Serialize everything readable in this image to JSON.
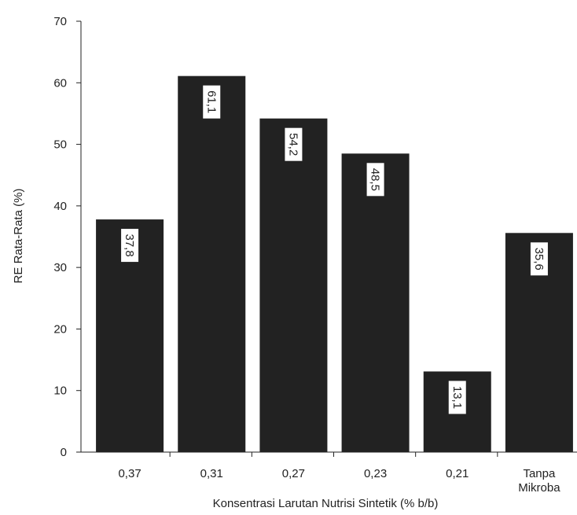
{
  "chart_data": {
    "type": "bar",
    "x_label": "Konsentrasi Larutan Nutrisi Sintetik (% b/b)",
    "y_label": "RE Rata-Rata (%)",
    "categories": [
      "0,37",
      "0,31",
      "0,27",
      "0,23",
      "0,21",
      "Tanpa Mikroba"
    ],
    "values": [
      37.8,
      61.1,
      54.2,
      48.5,
      13.1,
      35.6
    ],
    "value_labels": [
      "37,8",
      "61,1",
      "54,2",
      "48,5",
      "13,1",
      "35,6"
    ],
    "color": "#222222",
    "ylim": [
      0,
      70
    ],
    "yticks": [
      0,
      10,
      20,
      30,
      40,
      50,
      60,
      70
    ],
    "grid": false
  }
}
